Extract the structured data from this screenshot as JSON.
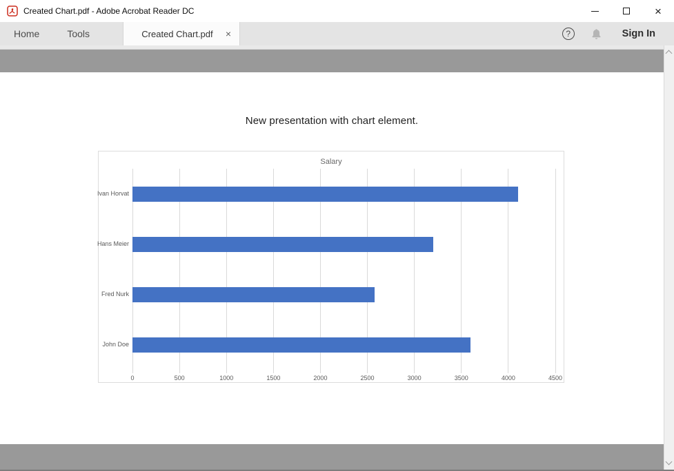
{
  "window": {
    "title": "Created Chart.pdf - Adobe Acrobat Reader DC"
  },
  "icons": {
    "close": "×",
    "tab_close": "×",
    "help": "?"
  },
  "tabbar": {
    "home_label": "Home",
    "tools_label": "Tools",
    "document_tab_label": "Created Chart.pdf",
    "sign_in_label": "Sign In"
  },
  "document": {
    "heading": "New presentation with chart element."
  },
  "chart_data": {
    "type": "bar",
    "orientation": "horizontal",
    "title": "Salary",
    "categories": [
      "Ivan Horvat",
      "Hans Meier",
      "Fred Nurk",
      "John Doe"
    ],
    "values": [
      4100,
      3200,
      2580,
      3600
    ],
    "xlim": [
      0,
      4500
    ],
    "x_ticks": [
      0,
      500,
      1000,
      1500,
      2000,
      2500,
      3000,
      3500,
      4000,
      4500
    ],
    "bar_color": "#4472C4",
    "gridline_color": "#d9d9d9",
    "axis_label_color": "#595959",
    "grid": true,
    "legend": false
  }
}
